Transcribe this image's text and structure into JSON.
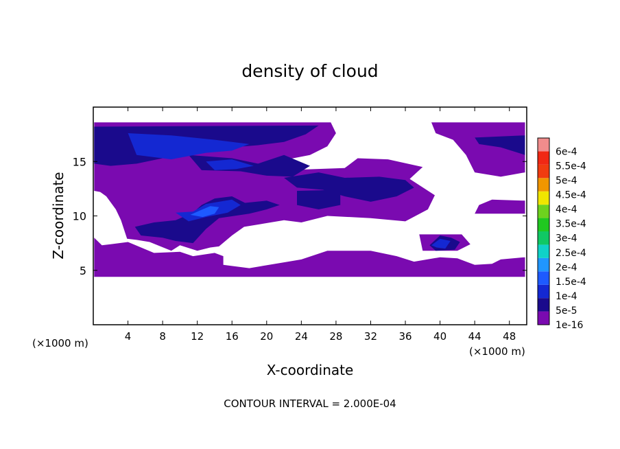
{
  "chart_data": {
    "type": "heatmap",
    "title": "density of cloud",
    "xlabel": "X-coordinate",
    "ylabel": "Z-coordinate",
    "x_unit": "(×1000 m)",
    "xlim": [
      0,
      50
    ],
    "ylim": [
      0,
      20
    ],
    "x_ticks": [
      4,
      8,
      12,
      16,
      20,
      24,
      28,
      32,
      36,
      40,
      44,
      48
    ],
    "y_ticks": [
      5,
      10,
      15
    ],
    "footer": "CONTOUR INTERVAL = 2.000E-04",
    "colorbar": {
      "levels": [
        "1e-16",
        "5e-5",
        "1e-4",
        "1.5e-4",
        "2e-4",
        "2.5e-4",
        "3e-4",
        "3.5e-4",
        "4e-4",
        "4.5e-4",
        "5e-4",
        "5.5e-4",
        "6e-4"
      ],
      "colors": [
        "#7a0ab0",
        "#1a0a8c",
        "#1428d2",
        "#1e5aff",
        "#2096ff",
        "#10d2c8",
        "#10c864",
        "#20c820",
        "#6ed21e",
        "#f0e600",
        "#f09600",
        "#f03c10",
        "#f02814",
        "#f08c8c"
      ]
    },
    "regions": [
      {
        "level": "1e-16",
        "polys": [
          [
            [
              0.1,
              18.6
            ],
            [
              27.4,
              18.6
            ],
            [
              28.0,
              17.6
            ],
            [
              27.0,
              16.4
            ],
            [
              25.0,
              15.6
            ],
            [
              22.4,
              15.2
            ],
            [
              22.0,
              14.2
            ],
            [
              29.0,
              14.4
            ],
            [
              30.5,
              15.3
            ],
            [
              34.0,
              15.2
            ],
            [
              38.0,
              14.5
            ],
            [
              36.5,
              13.4
            ],
            [
              39.4,
              11.9
            ],
            [
              38.6,
              10.6
            ],
            [
              36.0,
              9.5
            ],
            [
              32.0,
              9.8
            ],
            [
              27.0,
              10.0
            ],
            [
              24.0,
              9.4
            ],
            [
              22.0,
              9.6
            ],
            [
              17.4,
              9.0
            ],
            [
              16.0,
              8.2
            ],
            [
              14.5,
              7.2
            ],
            [
              13.5,
              7.1
            ],
            [
              12.0,
              6.8
            ],
            [
              10.0,
              7.3
            ],
            [
              9.0,
              6.8
            ],
            [
              6.5,
              7.6
            ],
            [
              5.0,
              7.8
            ],
            [
              3.9,
              7.9
            ],
            [
              3.2,
              9.6
            ],
            [
              2.6,
              10.6
            ],
            [
              1.5,
              11.8
            ],
            [
              0.8,
              12.2
            ],
            [
              0.1,
              12.3
            ]
          ],
          [
            [
              0.1,
              8.0
            ],
            [
              1.0,
              7.3
            ],
            [
              2.0,
              7.4
            ],
            [
              4.0,
              7.6
            ],
            [
              7.0,
              6.6
            ],
            [
              10.0,
              6.7
            ],
            [
              11.5,
              6.3
            ],
            [
              14.0,
              6.6
            ],
            [
              15.0,
              6.3
            ],
            [
              15.0,
              5.5
            ],
            [
              18.0,
              5.2
            ],
            [
              24.0,
              6.0
            ],
            [
              27.0,
              6.8
            ],
            [
              32.0,
              6.8
            ],
            [
              35.0,
              6.3
            ],
            [
              37.0,
              5.8
            ],
            [
              40.0,
              6.2
            ],
            [
              42.0,
              6.1
            ],
            [
              44.0,
              5.5
            ],
            [
              46.0,
              5.6
            ],
            [
              47.0,
              6.0
            ],
            [
              49.8,
              6.2
            ],
            [
              49.8,
              4.4
            ],
            [
              0.1,
              4.4
            ]
          ],
          [
            [
              39.0,
              18.6
            ],
            [
              49.8,
              18.6
            ],
            [
              49.8,
              14.0
            ],
            [
              47.0,
              13.6
            ],
            [
              44.0,
              14.0
            ],
            [
              43.0,
              15.6
            ],
            [
              41.5,
              17.0
            ],
            [
              39.5,
              17.6
            ]
          ],
          [
            [
              44.0,
              10.2
            ],
            [
              49.8,
              10.2
            ],
            [
              49.8,
              11.4
            ],
            [
              46.0,
              11.5
            ],
            [
              44.5,
              11.0
            ]
          ],
          [
            [
              37.6,
              8.3
            ],
            [
              42.5,
              8.3
            ],
            [
              43.5,
              7.4
            ],
            [
              42.0,
              6.8
            ],
            [
              38.0,
              6.8
            ]
          ]
        ]
      },
      {
        "level": "5e-5",
        "polys": [
          [
            [
              0.1,
              18.2
            ],
            [
              26.0,
              18.3
            ],
            [
              24.5,
              17.5
            ],
            [
              22.0,
              16.8
            ],
            [
              19.0,
              16.5
            ],
            [
              16.0,
              16.3
            ],
            [
              12.0,
              16.0
            ],
            [
              8.0,
              15.3
            ],
            [
              5.0,
              14.8
            ],
            [
              2.0,
              14.6
            ],
            [
              0.1,
              14.8
            ]
          ],
          [
            [
              11.0,
              15.6
            ],
            [
              16.0,
              15.3
            ],
            [
              19.0,
              14.8
            ],
            [
              22.0,
              15.6
            ],
            [
              25.0,
              14.6
            ],
            [
              23.0,
              13.6
            ],
            [
              20.0,
              13.7
            ],
            [
              17.0,
              14.1
            ],
            [
              12.5,
              14.2
            ]
          ],
          [
            [
              22.0,
              13.5
            ],
            [
              26.0,
              14.0
            ],
            [
              29.0,
              13.5
            ],
            [
              33.0,
              13.6
            ],
            [
              36.0,
              13.3
            ],
            [
              37.0,
              12.6
            ],
            [
              35.0,
              11.8
            ],
            [
              32.0,
              11.3
            ],
            [
              29.0,
              11.8
            ],
            [
              26.5,
              12.4
            ],
            [
              23.5,
              12.6
            ]
          ],
          [
            [
              23.5,
              12.3
            ],
            [
              28.5,
              12.4
            ],
            [
              28.5,
              11.0
            ],
            [
              26.0,
              10.6
            ],
            [
              23.5,
              11.0
            ]
          ],
          [
            [
              4.8,
              9.0
            ],
            [
              7.0,
              9.4
            ],
            [
              9.5,
              9.6
            ],
            [
              11.5,
              10.3
            ],
            [
              12.5,
              11.0
            ],
            [
              14.0,
              11.6
            ],
            [
              16.0,
              11.8
            ],
            [
              17.5,
              11.2
            ],
            [
              20.0,
              11.4
            ],
            [
              21.5,
              11.0
            ],
            [
              20.0,
              10.6
            ],
            [
              18.0,
              10.2
            ],
            [
              14.5,
              9.8
            ],
            [
              13.0,
              8.8
            ],
            [
              11.5,
              7.5
            ],
            [
              9.5,
              7.7
            ],
            [
              8.0,
              8.0
            ],
            [
              5.5,
              8.2
            ]
          ],
          [
            [
              44.0,
              17.2
            ],
            [
              49.8,
              17.4
            ],
            [
              49.8,
              15.6
            ],
            [
              47.0,
              16.3
            ],
            [
              44.5,
              16.6
            ]
          ],
          [
            [
              38.8,
              7.3
            ],
            [
              40.0,
              8.2
            ],
            [
              41.3,
              8.0
            ],
            [
              42.3,
              7.6
            ],
            [
              41.7,
              6.9
            ],
            [
              39.5,
              6.8
            ]
          ]
        ]
      },
      {
        "level": "1e-4",
        "polys": [
          [
            [
              4.0,
              17.6
            ],
            [
              9.0,
              17.4
            ],
            [
              14.0,
              17.0
            ],
            [
              18.0,
              16.6
            ],
            [
              16.0,
              16.0
            ],
            [
              13.0,
              15.8
            ],
            [
              9.0,
              15.2
            ],
            [
              5.0,
              15.6
            ]
          ],
          [
            [
              13.0,
              15.0
            ],
            [
              16.0,
              15.2
            ],
            [
              18.5,
              14.6
            ],
            [
              16.5,
              14.3
            ],
            [
              14.0,
              14.2
            ]
          ],
          [
            [
              9.5,
              10.3
            ],
            [
              11.5,
              10.4
            ],
            [
              13.0,
              11.1
            ],
            [
              14.5,
              11.3
            ],
            [
              16.0,
              11.5
            ],
            [
              17.0,
              11.0
            ],
            [
              15.5,
              10.3
            ],
            [
              13.0,
              9.9
            ],
            [
              11.0,
              9.5
            ]
          ],
          [
            [
              39.0,
              7.3
            ],
            [
              40.0,
              7.9
            ],
            [
              41.2,
              7.7
            ],
            [
              40.6,
              7.0
            ],
            [
              39.6,
              7.1
            ]
          ]
        ]
      },
      {
        "level": "1.5e-4",
        "polys": [
          [
            [
              11.2,
              10.1
            ],
            [
              12.3,
              10.5
            ],
            [
              13.5,
              10.9
            ],
            [
              14.5,
              10.8
            ],
            [
              14.0,
              10.2
            ],
            [
              12.6,
              9.9
            ]
          ]
        ]
      }
    ]
  }
}
